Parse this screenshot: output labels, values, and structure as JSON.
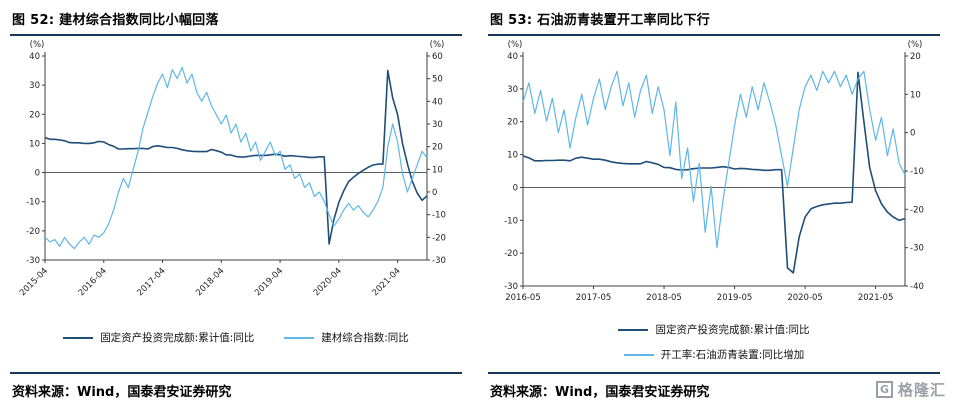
{
  "panels": [
    {
      "title": "图 52:  建材综合指数同比小幅回落",
      "source": "资料来源：Wind，国泰君安证券研究",
      "legend": [
        {
          "label": "固定资产投资完成额:累计值:同比",
          "color": "#1F4E79"
        },
        {
          "label": "建材综合指数:同比",
          "color": "#5FB6E8"
        }
      ]
    },
    {
      "title": "图 53:  石油沥青装置开工率同比下行",
      "source": "资料来源：Wind，国泰君安证券研究",
      "legend": [
        {
          "label": "固定资产投资完成额:累计值:同比",
          "color": "#1F4E79"
        },
        {
          "label": "开工率:石油沥青装置:同比增加",
          "color": "#5FB6E8"
        }
      ]
    }
  ],
  "logo": {
    "letter": "G",
    "text": "格隆汇"
  },
  "chart_data": [
    {
      "type": "line",
      "title": "建材综合指数同比小幅回落",
      "figure_label": "图 52",
      "n_points": 79,
      "x_tick_labels": [
        "2015-04",
        "2016-04",
        "2017-04",
        "2018-04",
        "2019-04",
        "2020-04",
        "2021-04"
      ],
      "x_tick_index": [
        0,
        12,
        24,
        36,
        48,
        60,
        72
      ],
      "x_label_rotation": -45,
      "grid": false,
      "legend_position": "bottom",
      "axes": {
        "left": {
          "unit": "(%)",
          "min": -30,
          "max": 40,
          "step": 10
        },
        "right": {
          "unit": "(%)",
          "min": -30,
          "max": 60,
          "step": 10
        }
      },
      "series": [
        {
          "name": "固定资产投资完成额:累计值:同比",
          "axis": "left",
          "color": "#1F4E79",
          "values": [
            12.0,
            11.4,
            11.4,
            11.2,
            10.9,
            10.3,
            10.2,
            10.2,
            10.0,
            10.0,
            10.2,
            10.7,
            10.5,
            9.6,
            9.0,
            8.1,
            8.1,
            8.2,
            8.2,
            8.3,
            8.3,
            8.1,
            8.9,
            9.2,
            8.9,
            8.6,
            8.6,
            8.3,
            7.8,
            7.5,
            7.3,
            7.2,
            7.2,
            7.2,
            7.9,
            7.5,
            7.0,
            6.1,
            6.0,
            5.5,
            5.3,
            5.4,
            5.7,
            5.9,
            5.9,
            5.9,
            6.1,
            6.3,
            6.1,
            5.6,
            5.8,
            5.7,
            5.5,
            5.4,
            5.2,
            5.2,
            5.4,
            5.4,
            -24.5,
            -16.1,
            -10.3,
            -6.3,
            -3.1,
            -1.6,
            -0.3,
            0.8,
            1.8,
            2.6,
            2.9,
            2.9,
            35.0,
            25.6,
            19.9,
            10.0,
            3.0,
            -3.0,
            -7.0,
            -9.5,
            -8.0
          ]
        },
        {
          "name": "建材综合指数:同比",
          "axis": "right",
          "color": "#5FB6E8",
          "values": [
            -20,
            -22,
            -21,
            -24,
            -20,
            -23,
            -25,
            -22,
            -20,
            -23,
            -19,
            -20,
            -18,
            -14,
            -8,
            0,
            6,
            2,
            10,
            18,
            28,
            35,
            42,
            48,
            52,
            46,
            54,
            50,
            55,
            48,
            52,
            44,
            40,
            44,
            38,
            34,
            30,
            34,
            26,
            30,
            22,
            26,
            18,
            22,
            14,
            18,
            22,
            16,
            18,
            10,
            12,
            6,
            8,
            2,
            4,
            -2,
            0,
            -4,
            -10,
            -15,
            -12,
            -8,
            -5,
            -8,
            -6,
            -9,
            -11,
            -8,
            -4,
            2,
            20,
            30,
            22,
            8,
            0,
            6,
            12,
            18,
            15
          ]
        }
      ]
    },
    {
      "type": "line",
      "title": "石油沥青装置开工率同比下行",
      "figure_label": "图 53",
      "n_points": 66,
      "x_tick_labels": [
        "2016-05",
        "2017-05",
        "2018-05",
        "2019-05",
        "2020-05",
        "2021-05"
      ],
      "x_tick_index": [
        0,
        12,
        24,
        36,
        48,
        60
      ],
      "x_label_rotation": 0,
      "grid": false,
      "legend_position": "bottom",
      "axes": {
        "left": {
          "unit": "(%)",
          "min": -30,
          "max": 40,
          "step": 10
        },
        "right": {
          "unit": "(%)",
          "min": -40,
          "max": 20,
          "step": 10
        }
      },
      "series": [
        {
          "name": "固定资产投资完成额:累计值:同比",
          "axis": "left",
          "color": "#1F4E79",
          "values": [
            9.6,
            9.0,
            8.1,
            8.1,
            8.2,
            8.2,
            8.3,
            8.3,
            8.1,
            8.9,
            9.2,
            8.9,
            8.6,
            8.6,
            8.3,
            7.8,
            7.5,
            7.3,
            7.2,
            7.2,
            7.2,
            7.9,
            7.5,
            7.0,
            6.1,
            6.0,
            5.5,
            5.3,
            5.4,
            5.7,
            5.9,
            5.9,
            5.9,
            6.1,
            6.3,
            6.1,
            5.6,
            5.8,
            5.7,
            5.5,
            5.4,
            5.2,
            5.2,
            5.4,
            5.4,
            -24.5,
            -26.0,
            -15.0,
            -9.0,
            -6.5,
            -5.8,
            -5.3,
            -5.0,
            -4.8,
            -4.8,
            -4.6,
            -4.5,
            35.0,
            20.0,
            6.0,
            -1.0,
            -5.0,
            -7.5,
            -9.0,
            -10.0,
            -9.5
          ]
        },
        {
          "name": "开工率:石油沥青装置:同比增加",
          "axis": "right",
          "color": "#5FB6E8",
          "values": [
            8,
            13,
            5,
            11,
            3,
            9,
            0,
            6,
            -4,
            4,
            10,
            2,
            9,
            14,
            6,
            12,
            16,
            7,
            13,
            4,
            11,
            15,
            5,
            12,
            6,
            -6,
            8,
            -12,
            -4,
            -18,
            -8,
            -26,
            -14,
            -30,
            -18,
            -8,
            2,
            10,
            4,
            12,
            6,
            13,
            8,
            2,
            -6,
            -14,
            -4,
            6,
            12,
            15,
            11,
            16,
            13,
            16,
            12,
            15,
            10,
            14,
            16,
            6,
            -2,
            4,
            -6,
            1,
            -8,
            -11
          ]
        }
      ]
    }
  ]
}
